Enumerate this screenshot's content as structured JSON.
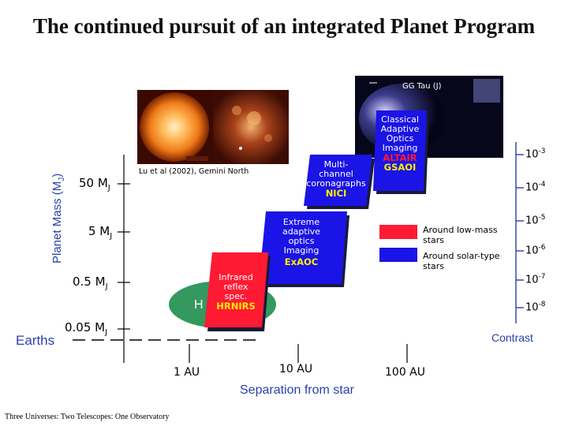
{
  "title": "The continued pursuit of an integrated Planet Program",
  "y_axis_label": "Planet Mass (M",
  "y_axis_label_sub": "J",
  "y_axis_label_close": ")",
  "mass_ticks": [
    {
      "label": "50 M",
      "sub": "J"
    },
    {
      "label": "5 M",
      "sub": "J"
    },
    {
      "label": "0.5 M",
      "sub": "J"
    },
    {
      "label": "0.05 M",
      "sub": "J"
    }
  ],
  "earths_label": "Earths",
  "x_axis": {
    "ticks": [
      "1 AU",
      "10 AU",
      "100 AU"
    ],
    "label": "Separation from star"
  },
  "image_credit": "Lu et al (2002), Gemini North",
  "gg_tau_label": "GG Tau (J)",
  "hz_label": "H",
  "boxes": {
    "classical": {
      "lines": [
        "Classical",
        "Adaptive",
        "Optics",
        "Imaging"
      ],
      "instrument1": "ALTAIR",
      "instrument2": "GSAOI"
    },
    "multichannel": {
      "lines": [
        "Multi-",
        "channel",
        "coronagraphs"
      ],
      "instrument": "NICI"
    },
    "extreme": {
      "lines": [
        "Extreme",
        "adaptive",
        "optics",
        "Imaging"
      ],
      "instrument": "ExAOC"
    },
    "infrared": {
      "lines": [
        "Infrared",
        "reflex",
        "spec."
      ],
      "instrument": "HRNIRS"
    }
  },
  "legend": [
    {
      "color": "#ff1a33",
      "text": "Around low-mass stars"
    },
    {
      "color": "#1a14e6",
      "text": "Around solar-type stars"
    }
  ],
  "contrast": {
    "label": "Contrast",
    "ticks": [
      {
        "base": "10",
        "exp": "-3"
      },
      {
        "base": "10",
        "exp": "-4"
      },
      {
        "base": "10",
        "exp": "-5"
      },
      {
        "base": "10",
        "exp": "-6"
      },
      {
        "base": "10",
        "exp": "-7"
      },
      {
        "base": "10",
        "exp": "-8"
      }
    ]
  },
  "footer": "Three Universes: Two Telescopes: One Observatory",
  "colors": {
    "low_mass_red": "#ff1a33",
    "solar_blue": "#1a14e6",
    "axis_blue": "#2b3fa8",
    "habitable_green": "#33995e",
    "instrument_yellow": "#ffee00"
  }
}
